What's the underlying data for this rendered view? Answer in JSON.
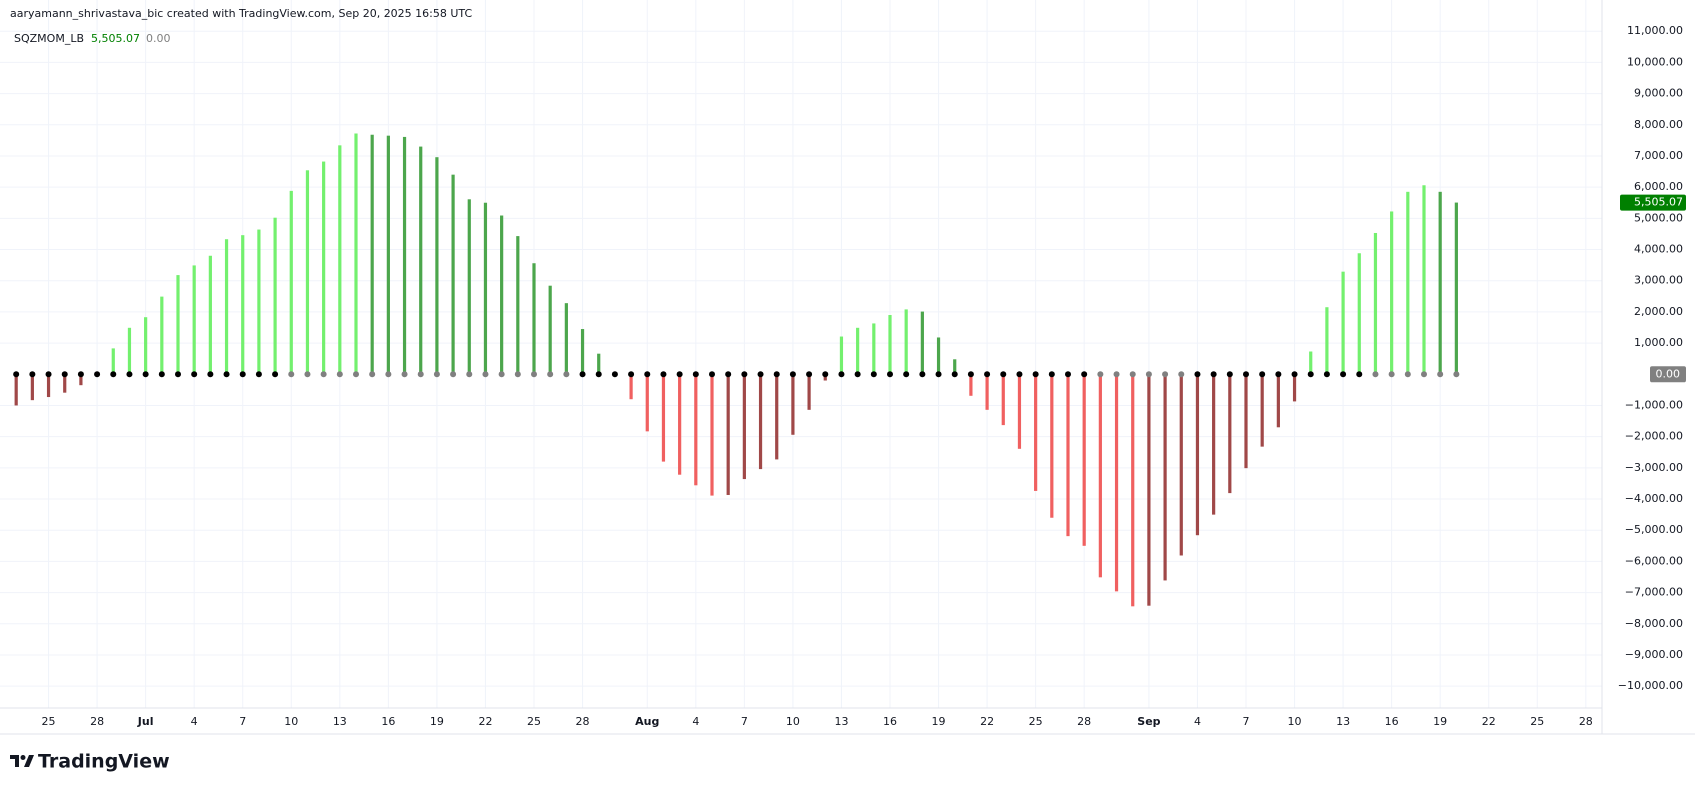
{
  "header": {
    "credit": "aaryamann_shrivastava_bic created with TradingView.com, Sep 20, 2025 16:58 UTC",
    "logo": "TradingView"
  },
  "chart_data": {
    "type": "bar",
    "series": [
      {
        "name": "SQZMOM_LB",
        "last_label": "5,505.07",
        "zero_label": "0.00",
        "x": [
          "2025-06-23",
          "2025-06-24",
          "2025-06-25",
          "2025-06-26",
          "2025-06-27",
          "2025-06-28",
          "2025-06-29",
          "2025-06-30",
          "2025-07-01",
          "2025-07-02",
          "2025-07-03",
          "2025-07-04",
          "2025-07-05",
          "2025-07-06",
          "2025-07-07",
          "2025-07-08",
          "2025-07-09",
          "2025-07-10",
          "2025-07-11",
          "2025-07-12",
          "2025-07-13",
          "2025-07-14",
          "2025-07-15",
          "2025-07-16",
          "2025-07-17",
          "2025-07-18",
          "2025-07-19",
          "2025-07-20",
          "2025-07-21",
          "2025-07-22",
          "2025-07-23",
          "2025-07-24",
          "2025-07-25",
          "2025-07-26",
          "2025-07-27",
          "2025-07-28",
          "2025-07-29",
          "2025-07-30",
          "2025-07-31",
          "2025-08-01",
          "2025-08-02",
          "2025-08-03",
          "2025-08-04",
          "2025-08-05",
          "2025-08-06",
          "2025-08-07",
          "2025-08-08",
          "2025-08-09",
          "2025-08-10",
          "2025-08-11",
          "2025-08-12",
          "2025-08-13",
          "2025-08-14",
          "2025-08-15",
          "2025-08-16",
          "2025-08-17",
          "2025-08-18",
          "2025-08-19",
          "2025-08-20",
          "2025-08-21",
          "2025-08-22",
          "2025-08-23",
          "2025-08-24",
          "2025-08-25",
          "2025-08-26",
          "2025-08-27",
          "2025-08-28",
          "2025-08-29",
          "2025-08-30",
          "2025-08-31",
          "2025-09-01",
          "2025-09-02",
          "2025-09-03",
          "2025-09-04",
          "2025-09-05",
          "2025-09-06",
          "2025-09-07",
          "2025-09-08",
          "2025-09-09",
          "2025-09-10",
          "2025-09-11",
          "2025-09-12",
          "2025-09-13",
          "2025-09-14",
          "2025-09-15",
          "2025-09-16",
          "2025-09-17",
          "2025-09-18",
          "2025-09-19",
          "2025-09-20"
        ],
        "values": [
          -1000,
          -830,
          -730,
          -590,
          -350,
          -60,
          830,
          1490,
          1830,
          2490,
          3180,
          3490,
          3800,
          4330,
          4460,
          4640,
          5020,
          5880,
          6540,
          6820,
          7340,
          7720,
          7680,
          7650,
          7610,
          7300,
          6960,
          6400,
          5610,
          5500,
          5090,
          4430,
          3560,
          2840,
          2280,
          1450,
          660,
          40,
          -800,
          -1830,
          -2800,
          -3220,
          -3560,
          -3890,
          -3870,
          -3360,
          -3040,
          -2730,
          -1940,
          -1140,
          -200,
          1210,
          1490,
          1630,
          1900,
          2080,
          2010,
          1180,
          480,
          -690,
          -1140,
          -1630,
          -2390,
          -3740,
          -4600,
          -5190,
          -5500,
          -6510,
          -6960,
          -7440,
          -7420,
          -6610,
          -5810,
          -5160,
          -4500,
          -3810,
          -3010,
          -2320,
          -1700,
          -870,
          730,
          2150,
          3290,
          3880,
          4530,
          5220,
          5850,
          6060,
          5850,
          5505.07
        ],
        "colors": [
          "#a04848",
          "#a04848",
          "#a04848",
          "#a04848",
          "#a04848",
          "#a04848",
          "#73f06e",
          "#73f06e",
          "#73f06e",
          "#73f06e",
          "#73f06e",
          "#73f06e",
          "#73f06e",
          "#73f06e",
          "#73f06e",
          "#73f06e",
          "#73f06e",
          "#73f06e",
          "#73f06e",
          "#73f06e",
          "#73f06e",
          "#73f06e",
          "#4ca64c",
          "#4ca64c",
          "#4ca64c",
          "#4ca64c",
          "#4ca64c",
          "#4ca64c",
          "#4ca64c",
          "#4ca64c",
          "#4ca64c",
          "#4ca64c",
          "#4ca64c",
          "#4ca64c",
          "#4ca64c",
          "#4ca64c",
          "#4ca64c",
          "#4ca64c",
          "#f06060",
          "#f06060",
          "#f06060",
          "#f06060",
          "#f06060",
          "#f06060",
          "#a04848",
          "#a04848",
          "#a04848",
          "#a04848",
          "#a04848",
          "#a04848",
          "#a04848",
          "#73f06e",
          "#73f06e",
          "#73f06e",
          "#73f06e",
          "#73f06e",
          "#4ca64c",
          "#4ca64c",
          "#4ca64c",
          "#f06060",
          "#f06060",
          "#f06060",
          "#f06060",
          "#f06060",
          "#f06060",
          "#f06060",
          "#f06060",
          "#f06060",
          "#f06060",
          "#f06060",
          "#a04848",
          "#a04848",
          "#a04848",
          "#a04848",
          "#a04848",
          "#a04848",
          "#a04848",
          "#a04848",
          "#a04848",
          "#a04848",
          "#73f06e",
          "#73f06e",
          "#73f06e",
          "#73f06e",
          "#73f06e",
          "#73f06e",
          "#73f06e",
          "#73f06e",
          "#4ca64c",
          "#4ca64c"
        ],
        "dot_colors": [
          "#000000",
          "#000000",
          "#000000",
          "#000000",
          "#000000",
          "#000000",
          "#000000",
          "#000000",
          "#000000",
          "#000000",
          "#000000",
          "#000000",
          "#000000",
          "#000000",
          "#000000",
          "#000000",
          "#000000",
          "#808080",
          "#808080",
          "#808080",
          "#808080",
          "#808080",
          "#808080",
          "#808080",
          "#808080",
          "#808080",
          "#808080",
          "#808080",
          "#808080",
          "#808080",
          "#808080",
          "#808080",
          "#808080",
          "#808080",
          "#808080",
          "#000000",
          "#000000",
          "#000000",
          "#000000",
          "#000000",
          "#000000",
          "#000000",
          "#000000",
          "#000000",
          "#000000",
          "#000000",
          "#000000",
          "#000000",
          "#000000",
          "#000000",
          "#000000",
          "#000000",
          "#000000",
          "#000000",
          "#000000",
          "#000000",
          "#000000",
          "#000000",
          "#000000",
          "#000000",
          "#000000",
          "#000000",
          "#000000",
          "#000000",
          "#000000",
          "#000000",
          "#000000",
          "#808080",
          "#808080",
          "#808080",
          "#808080",
          "#808080",
          "#808080",
          "#000000",
          "#000000",
          "#000000",
          "#000000",
          "#000000",
          "#000000",
          "#000000",
          "#000000",
          "#000000",
          "#000000",
          "#000000",
          "#808080",
          "#808080",
          "#808080",
          "#808080",
          "#808080",
          "#808080"
        ]
      }
    ],
    "xlim": [
      "2025-06-22",
      "2025-09-29"
    ],
    "xticks": [
      {
        "value": "2025-06-25",
        "label": "25"
      },
      {
        "value": "2025-06-28",
        "label": "28"
      },
      {
        "value": "2025-07-01",
        "label": "Jul"
      },
      {
        "value": "2025-07-04",
        "label": "4"
      },
      {
        "value": "2025-07-07",
        "label": "7"
      },
      {
        "value": "2025-07-10",
        "label": "10"
      },
      {
        "value": "2025-07-13",
        "label": "13"
      },
      {
        "value": "2025-07-16",
        "label": "16"
      },
      {
        "value": "2025-07-19",
        "label": "19"
      },
      {
        "value": "2025-07-22",
        "label": "22"
      },
      {
        "value": "2025-07-25",
        "label": "25"
      },
      {
        "value": "2025-07-28",
        "label": "28"
      },
      {
        "value": "2025-08-01",
        "label": "Aug"
      },
      {
        "value": "2025-08-04",
        "label": "4"
      },
      {
        "value": "2025-08-07",
        "label": "7"
      },
      {
        "value": "2025-08-10",
        "label": "10"
      },
      {
        "value": "2025-08-13",
        "label": "13"
      },
      {
        "value": "2025-08-16",
        "label": "16"
      },
      {
        "value": "2025-08-19",
        "label": "19"
      },
      {
        "value": "2025-08-22",
        "label": "22"
      },
      {
        "value": "2025-08-25",
        "label": "25"
      },
      {
        "value": "2025-08-28",
        "label": "28"
      },
      {
        "value": "2025-09-01",
        "label": "Sep"
      },
      {
        "value": "2025-09-04",
        "label": "4"
      },
      {
        "value": "2025-09-07",
        "label": "7"
      },
      {
        "value": "2025-09-10",
        "label": "10"
      },
      {
        "value": "2025-09-13",
        "label": "13"
      },
      {
        "value": "2025-09-16",
        "label": "16"
      },
      {
        "value": "2025-09-19",
        "label": "19"
      },
      {
        "value": "2025-09-22",
        "label": "22"
      },
      {
        "value": "2025-09-25",
        "label": "25"
      },
      {
        "value": "2025-09-28",
        "label": "28"
      }
    ],
    "ylim": [
      -10700,
      12000
    ],
    "yticks": [
      {
        "value": 11000,
        "label": "11,000.00"
      },
      {
        "value": 10000,
        "label": "10,000.00"
      },
      {
        "value": 9000,
        "label": "9,000.00"
      },
      {
        "value": 8000,
        "label": "8,000.00"
      },
      {
        "value": 7000,
        "label": "7,000.00"
      },
      {
        "value": 6000,
        "label": "6,000.00"
      },
      {
        "value": 5000,
        "label": "5,000.00"
      },
      {
        "value": 4000,
        "label": "4,000.00"
      },
      {
        "value": 3000,
        "label": "3,000.00"
      },
      {
        "value": 2000,
        "label": "2,000.00"
      },
      {
        "value": 1000,
        "label": "1,000.00"
      },
      {
        "value": -1000,
        "label": "−1,000.00"
      },
      {
        "value": -2000,
        "label": "−2,000.00"
      },
      {
        "value": -3000,
        "label": "−3,000.00"
      },
      {
        "value": -4000,
        "label": "−4,000.00"
      },
      {
        "value": -5000,
        "label": "−5,000.00"
      },
      {
        "value": -6000,
        "label": "−6,000.00"
      },
      {
        "value": -7000,
        "label": "−7,000.00"
      },
      {
        "value": -8000,
        "label": "−8,000.00"
      },
      {
        "value": -9000,
        "label": "−9,000.00"
      },
      {
        "value": -10000,
        "label": "−10,000.00"
      }
    ],
    "grid": true,
    "last_color": "#008000",
    "zero_color": "#808080"
  }
}
